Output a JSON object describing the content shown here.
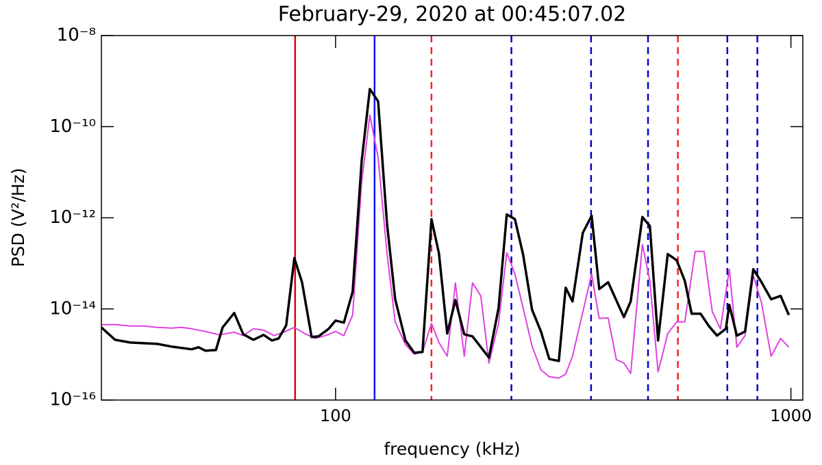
{
  "chart_data": {
    "type": "line",
    "title": "February-29, 2020 at 00:45:07.02",
    "xlabel": "frequency (kHz)",
    "ylabel": "PSD (V²/Hz)",
    "xscale": "log",
    "yscale": "log",
    "xlim": [
      30.6,
      1062
    ],
    "ylim": [
      1e-16,
      1e-08
    ],
    "xticks": [
      100,
      1000
    ],
    "yticks": [
      {
        "value": 1e-08,
        "label": "10⁻⁸"
      },
      {
        "value": 1e-10,
        "label": "10⁻¹⁰"
      },
      {
        "value": 1e-12,
        "label": "10⁻¹²"
      },
      {
        "value": 1e-14,
        "label": "10⁻¹⁴"
      },
      {
        "value": 1e-16,
        "label": "10⁻¹⁶"
      }
    ],
    "grid": false,
    "series": [
      {
        "color": "#000000",
        "x": [
          30.6,
          32.8,
          35.4,
          37.9,
          40.6,
          43.6,
          45.9,
          48.3,
          50.0,
          51.8,
          54.6,
          56.5,
          59.9,
          62.7,
          66.0,
          69.5,
          72.5,
          75.0,
          77.9,
          81.2,
          84.4,
          88.6,
          91.7,
          96.6,
          100,
          104.3,
          109.0,
          114.1,
          118.9,
          124.0,
          129.7,
          135.2,
          142.4,
          148.9,
          155.2,
          162.4,
          168.7,
          175.9,
          183.3,
          191.7,
          199.9,
          217.2,
          228.0,
          237.7,
          247.7,
          258.2,
          270.1,
          282.5,
          294.6,
          309.2,
          320.1,
          331.4,
          349.1,
          365.1,
          379.3,
          396.8,
          429.7,
          444.8,
          471.8,
          490.1,
          510.9,
          536.3,
          561.0,
          584.8,
          605.4,
          633.3,
          660.2,
          688.3,
          719.7,
          732.3,
          760.7,
          793.0,
          826.8,
          861.9,
          904.6,
          949.4,
          989.7
        ],
        "values": [
          3.93e-15,
          2.1e-15,
          1.83e-15,
          1.77e-15,
          1.71e-15,
          1.49e-15,
          1.39e-15,
          1.3e-15,
          1.44e-15,
          1.21e-15,
          1.25e-15,
          3.93e-15,
          8.13e-15,
          2.78e-15,
          2.1e-15,
          2.69e-15,
          2.03e-15,
          2.25e-15,
          4.36e-15,
          1.3e-13,
          3.86e-14,
          2.42e-15,
          2.5e-15,
          3.66e-15,
          5.55e-15,
          5e-15,
          2.38e-14,
          1.77e-11,
          6.71e-10,
          3.6e-10,
          7.33e-13,
          1.63e-14,
          2.03e-15,
          1.09e-15,
          1.13e-15,
          9.33e-13,
          1.65e-13,
          2.88e-15,
          1.57e-14,
          2.78e-15,
          2.5e-15,
          8.55e-16,
          1.04e-14,
          1.19e-12,
          9.33e-13,
          1.54e-13,
          9.66e-15,
          3.19e-15,
          7.98e-16,
          7.19e-16,
          2.92e-14,
          1.46e-14,
          4.67e-13,
          1.11e-12,
          2.73e-14,
          3.86e-14,
          6.61e-15,
          1.46e-14,
          1.04e-12,
          6.61e-13,
          2.03e-15,
          1.6e-13,
          1.17e-13,
          4.14e-14,
          7.85e-15,
          7.85e-15,
          4.21e-15,
          2.59e-15,
          3.66e-15,
          1.23e-14,
          2.59e-15,
          3.19e-15,
          7.45e-14,
          3.86e-14,
          1.63e-14,
          1.93e-14,
          7.33e-15
        ]
      },
      {
        "color": "#e040e0",
        "x": [
          30.6,
          33.0,
          35.4,
          37.9,
          40.6,
          43.6,
          45.9,
          48.3,
          51.8,
          55.5,
          59.9,
          62.7,
          66.0,
          69.5,
          73.2,
          76.9,
          81.2,
          85.6,
          90.1,
          94.9,
          100,
          104.3,
          109.0,
          114.1,
          118.9,
          124.0,
          129.7,
          135.2,
          142.4,
          148.9,
          155.2,
          162.4,
          168.7,
          175.9,
          183.3,
          191.7,
          199.9,
          208.4,
          217.2,
          228.0,
          237.7,
          247.7,
          258.2,
          270.1,
          282.5,
          294.6,
          309.2,
          320.1,
          331.4,
          345.4,
          365.1,
          379.3,
          396.8,
          413.6,
          429.7,
          444.8,
          471.8,
          490.1,
          510.9,
          536.3,
          561.0,
          584.8,
          616.0,
          644.4,
          671.8,
          700.0,
          732.3,
          760.7,
          793.0,
          826.8,
          861.9,
          904.6,
          949.4,
          989.7
        ],
        "values": [
          4.51e-15,
          4.51e-15,
          4.21e-15,
          4.21e-15,
          3.93e-15,
          3.79e-15,
          3.93e-15,
          3.66e-15,
          3.19e-15,
          2.69e-15,
          3.08e-15,
          2.59e-15,
          3.66e-15,
          3.42e-15,
          2.59e-15,
          3.08e-15,
          3.93e-15,
          2.88e-15,
          2.25e-15,
          2.59e-15,
          3.19e-15,
          2.59e-15,
          7.33e-15,
          6.05e-12,
          1.8e-10,
          2.1e-11,
          1.65e-13,
          5.18e-15,
          1.65e-15,
          1.02e-15,
          1.13e-15,
          4.83e-15,
          1.83e-15,
          9.17e-16,
          3.72e-14,
          9.17e-16,
          3.72e-14,
          1.93e-14,
          6.49e-16,
          4.83e-15,
          1.71e-13,
          5.85e-14,
          1.04e-14,
          1.54e-15,
          4.59e-16,
          3.25e-16,
          3.03e-16,
          3.72e-16,
          9.17e-16,
          5.36e-15,
          5.85e-14,
          6.15e-15,
          6.38e-15,
          7.71e-16,
          6.49e-16,
          3.85e-16,
          2.59e-13,
          4.14e-14,
          4.14e-16,
          2.88e-15,
          5.18e-15,
          5.18e-15,
          1.83e-13,
          1.83e-13,
          8.71e-15,
          3.66e-15,
          7.45e-14,
          1.44e-15,
          2.59e-15,
          5.46e-14,
          1.36e-14,
          9.17e-16,
          2.25e-15,
          1.44e-15
        ]
      }
    ],
    "vlines": [
      {
        "x": 81.5,
        "color": "#e00000",
        "style": "solid"
      },
      {
        "x": 121.8,
        "color": "#1010ff",
        "style": "solid"
      },
      {
        "x": 162.4,
        "color": "#ff2020",
        "style": "dashed"
      },
      {
        "x": 243.3,
        "color": "#0000cc",
        "style": "dashed"
      },
      {
        "x": 364,
        "color": "#0000cc",
        "style": "dashed"
      },
      {
        "x": 485.5,
        "color": "#0000cc",
        "style": "dashed"
      },
      {
        "x": 564.6,
        "color": "#ff2020",
        "style": "dashed"
      },
      {
        "x": 725,
        "color": "#0000cc",
        "style": "dashed"
      },
      {
        "x": 844,
        "color": "#0000cc",
        "style": "dashed"
      }
    ]
  }
}
